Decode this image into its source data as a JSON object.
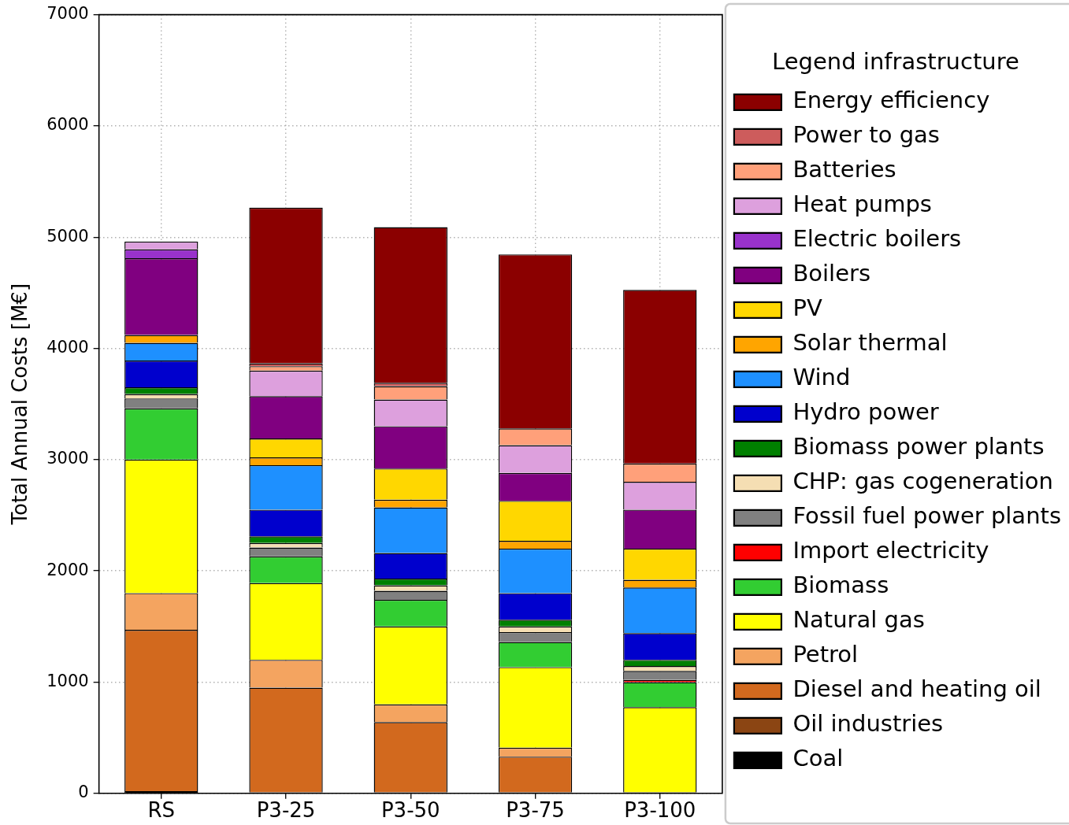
{
  "chart_data": {
    "type": "bar",
    "ylabel": "Total Annual Costs [M€]",
    "legend_title": "Legend infrastructure",
    "legend": "right",
    "grid": true,
    "stacked": true,
    "categories": [
      "RS",
      "P3-25",
      "P3-50",
      "P3-75",
      "P3-100"
    ],
    "ylim": [
      0,
      7000
    ],
    "yticks": [
      0,
      1000,
      2000,
      3000,
      4000,
      5000,
      6000,
      7000
    ],
    "series": [
      {
        "name": "Coal",
        "color": "#000000",
        "values": [
          20,
          10,
          10,
          10,
          10
        ]
      },
      {
        "name": "Oil industries",
        "color": "#8b4513",
        "values": [
          0,
          0,
          0,
          0,
          0
        ]
      },
      {
        "name": "Diesel and heating oil",
        "color": "#d2691e",
        "values": [
          1450,
          940,
          630,
          320,
          0
        ]
      },
      {
        "name": "Petrol",
        "color": "#f4a460",
        "values": [
          330,
          250,
          160,
          80,
          0
        ]
      },
      {
        "name": "Natural gas",
        "color": "#ffff00",
        "values": [
          1200,
          690,
          700,
          725,
          765
        ]
      },
      {
        "name": "Biomass",
        "color": "#32cd32",
        "values": [
          460,
          240,
          240,
          225,
          225
        ]
      },
      {
        "name": "Import electricity",
        "color": "#ff0000",
        "values": [
          0,
          0,
          0,
          0,
          20
        ]
      },
      {
        "name": "Fossil fuel power plants",
        "color": "#808080",
        "values": [
          90,
          80,
          80,
          90,
          80
        ]
      },
      {
        "name": "CHP: gas cogeneration",
        "color": "#f5deb3",
        "values": [
          40,
          40,
          50,
          50,
          45
        ]
      },
      {
        "name": "Biomass power plants",
        "color": "#008000",
        "values": [
          60,
          60,
          60,
          60,
          55
        ]
      },
      {
        "name": "Hydro power",
        "color": "#0000cd",
        "values": [
          240,
          240,
          230,
          240,
          240
        ]
      },
      {
        "name": "Wind",
        "color": "#1e90ff",
        "values": [
          160,
          400,
          410,
          400,
          410
        ]
      },
      {
        "name": "Solar thermal",
        "color": "#ffa500",
        "values": [
          70,
          70,
          70,
          70,
          70
        ]
      },
      {
        "name": "PV",
        "color": "#ffd700",
        "values": [
          0,
          170,
          280,
          360,
          280
        ]
      },
      {
        "name": "Boilers",
        "color": "#800080",
        "values": [
          690,
          380,
          380,
          250,
          350
        ]
      },
      {
        "name": "Electric boilers",
        "color": "#9932cc",
        "values": [
          80,
          0,
          0,
          0,
          0
        ]
      },
      {
        "name": "Heat pumps",
        "color": "#dda0dd",
        "values": [
          70,
          230,
          240,
          250,
          250
        ]
      },
      {
        "name": "Batteries",
        "color": "#ffa07a",
        "values": [
          0,
          40,
          120,
          150,
          165
        ]
      },
      {
        "name": "Power to gas",
        "color": "#cd5c5c",
        "values": [
          0,
          25,
          30,
          0,
          0
        ]
      },
      {
        "name": "Energy efficiency",
        "color": "#8b0000",
        "values": [
          0,
          1400,
          1400,
          1565,
          1560
        ]
      }
    ]
  }
}
